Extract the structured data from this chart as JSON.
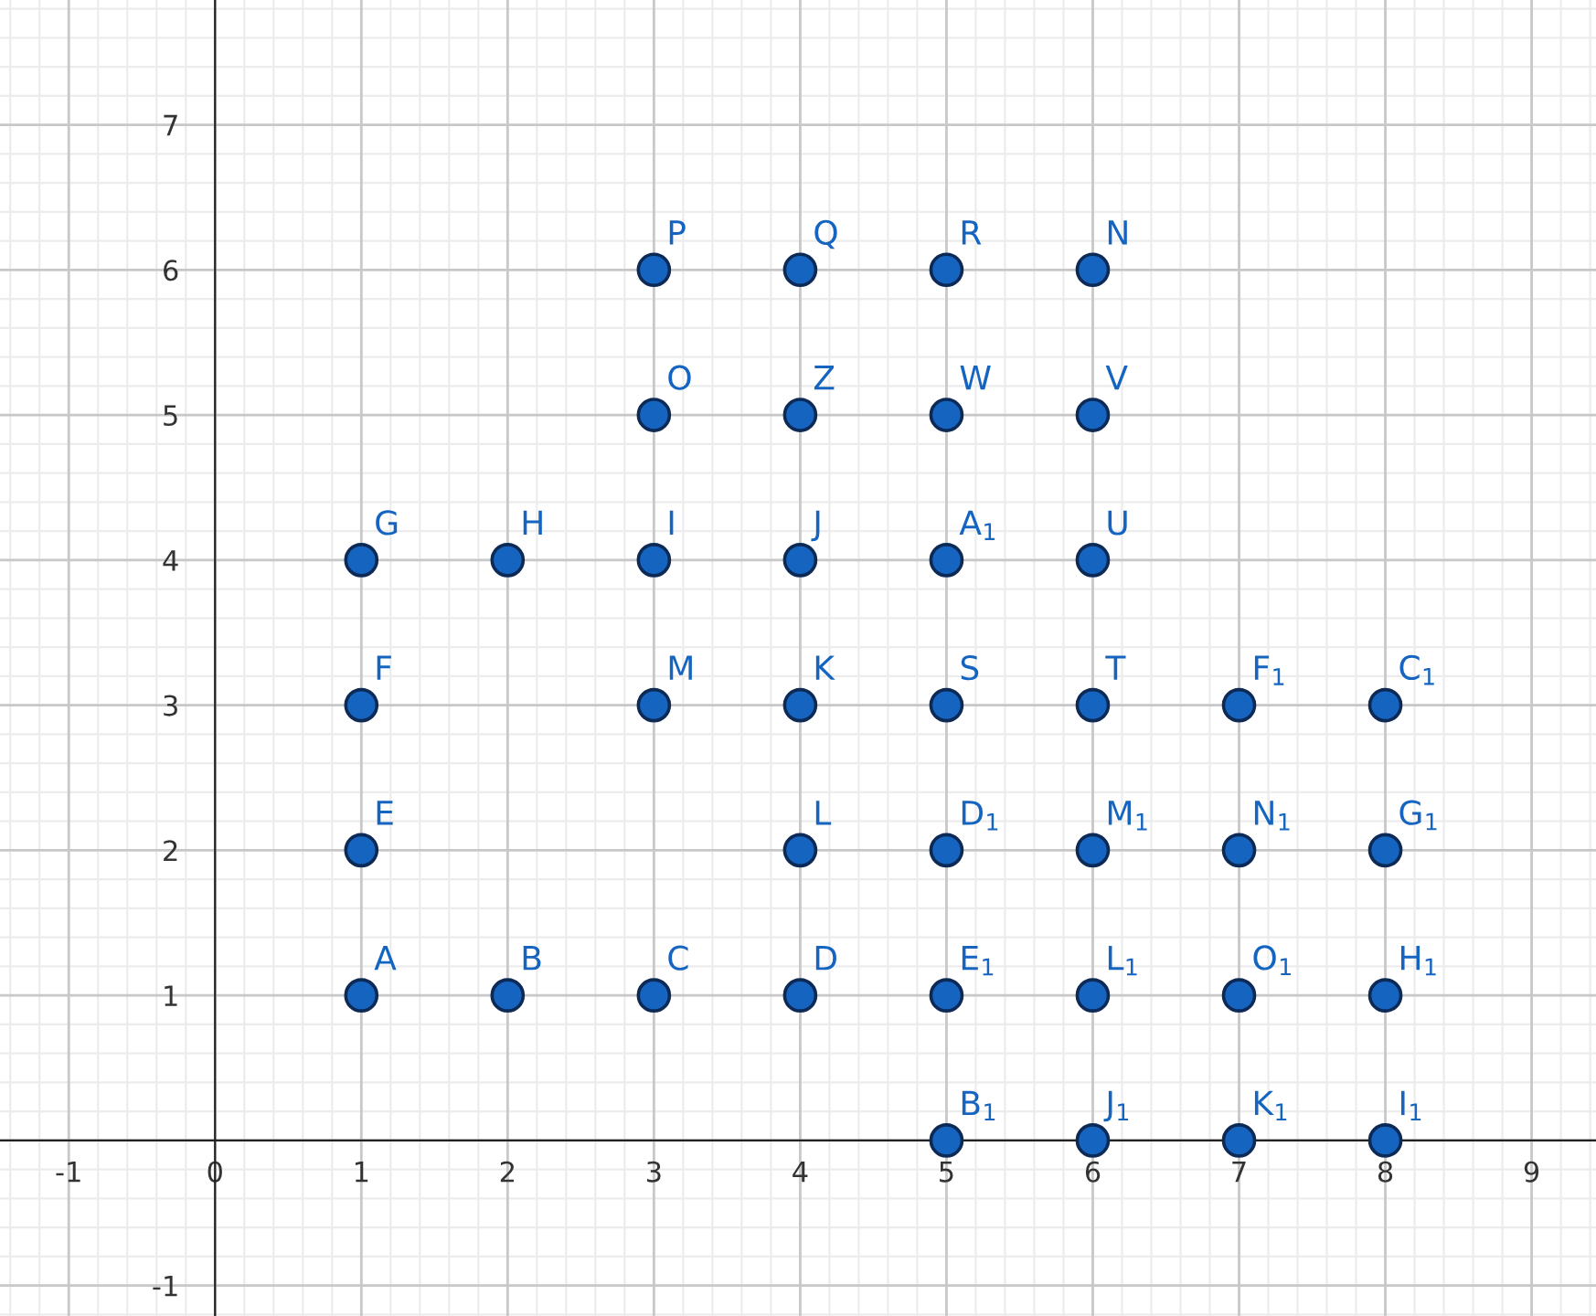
{
  "chart_data": {
    "type": "scatter",
    "x": [
      3,
      4,
      5,
      6,
      3,
      4,
      5,
      6,
      1,
      2,
      3,
      4,
      5,
      6,
      1,
      3,
      4,
      5,
      6,
      7,
      8,
      1,
      4,
      5,
      6,
      7,
      8,
      1,
      2,
      3,
      4,
      5,
      6,
      7,
      8,
      5,
      6,
      7,
      8
    ],
    "series": [
      {
        "color": "#1565c0",
        "values": [
          6,
          6,
          6,
          6,
          5,
          5,
          5,
          5,
          4,
          4,
          4,
          4,
          4,
          4,
          3,
          3,
          3,
          3,
          3,
          3,
          3,
          2,
          2,
          2,
          2,
          2,
          2,
          1,
          1,
          1,
          1,
          1,
          1,
          1,
          1,
          0,
          0,
          0,
          0
        ]
      }
    ],
    "annotations": [
      {
        "text": "P",
        "x": 3,
        "y": 6
      },
      {
        "text": "Q",
        "x": 4,
        "y": 6
      },
      {
        "text": "R",
        "x": 5,
        "y": 6
      },
      {
        "text": "N",
        "x": 6,
        "y": 6
      },
      {
        "text": "O",
        "x": 3,
        "y": 5
      },
      {
        "text": "Z",
        "x": 4,
        "y": 5
      },
      {
        "text": "W",
        "x": 5,
        "y": 5
      },
      {
        "text": "V",
        "x": 6,
        "y": 5
      },
      {
        "text": "G",
        "x": 1,
        "y": 4
      },
      {
        "text": "H",
        "x": 2,
        "y": 4
      },
      {
        "text": "I",
        "x": 3,
        "y": 4
      },
      {
        "text": "J",
        "x": 4,
        "y": 4
      },
      {
        "text": "A$_{1}$",
        "x": 5,
        "y": 4
      },
      {
        "text": "U",
        "x": 6,
        "y": 4
      },
      {
        "text": "F",
        "x": 1,
        "y": 3
      },
      {
        "text": "M",
        "x": 3,
        "y": 3
      },
      {
        "text": "K",
        "x": 4,
        "y": 3
      },
      {
        "text": "S",
        "x": 5,
        "y": 3
      },
      {
        "text": "T",
        "x": 6,
        "y": 3
      },
      {
        "text": "F$_{1}$",
        "x": 7,
        "y": 3
      },
      {
        "text": "C$_{1}$",
        "x": 8,
        "y": 3
      },
      {
        "text": "E",
        "x": 1,
        "y": 2
      },
      {
        "text": "L",
        "x": 4,
        "y": 2
      },
      {
        "text": "D$_{1}$",
        "x": 5,
        "y": 2
      },
      {
        "text": "M$_{1}$",
        "x": 6,
        "y": 2
      },
      {
        "text": "N$_{1}$",
        "x": 7,
        "y": 2
      },
      {
        "text": "G$_{1}$",
        "x": 8,
        "y": 2
      },
      {
        "text": "A",
        "x": 1,
        "y": 1
      },
      {
        "text": "B",
        "x": 2,
        "y": 1
      },
      {
        "text": "C",
        "x": 3,
        "y": 1
      },
      {
        "text": "D",
        "x": 4,
        "y": 1
      },
      {
        "text": "E$_{1}$",
        "x": 5,
        "y": 1
      },
      {
        "text": "L$_{1}$",
        "x": 6,
        "y": 1
      },
      {
        "text": "O$_{1}$",
        "x": 7,
        "y": 1
      },
      {
        "text": "H$_{1}$",
        "x": 8,
        "y": 1
      },
      {
        "text": "B$_{1}$",
        "x": 5,
        "y": 0
      },
      {
        "text": "J$_{1}$",
        "x": 6,
        "y": 0
      },
      {
        "text": "K$_{1}$",
        "x": 7,
        "y": 0
      },
      {
        "text": "I$_{1}$",
        "x": 8,
        "y": 0
      }
    ],
    "xlim": [
      -1.47,
      9.44
    ],
    "ylim": [
      -1.21,
      7.86
    ],
    "xticks": [
      -1,
      0,
      1,
      2,
      3,
      4,
      5,
      6,
      7,
      8,
      9
    ],
    "yticks": [
      -1,
      {
        "value": 0,
        "label": null
      },
      1,
      2,
      3,
      4,
      5,
      6,
      7
    ],
    "grid": true,
    "marker": "circle",
    "legend": false
  }
}
